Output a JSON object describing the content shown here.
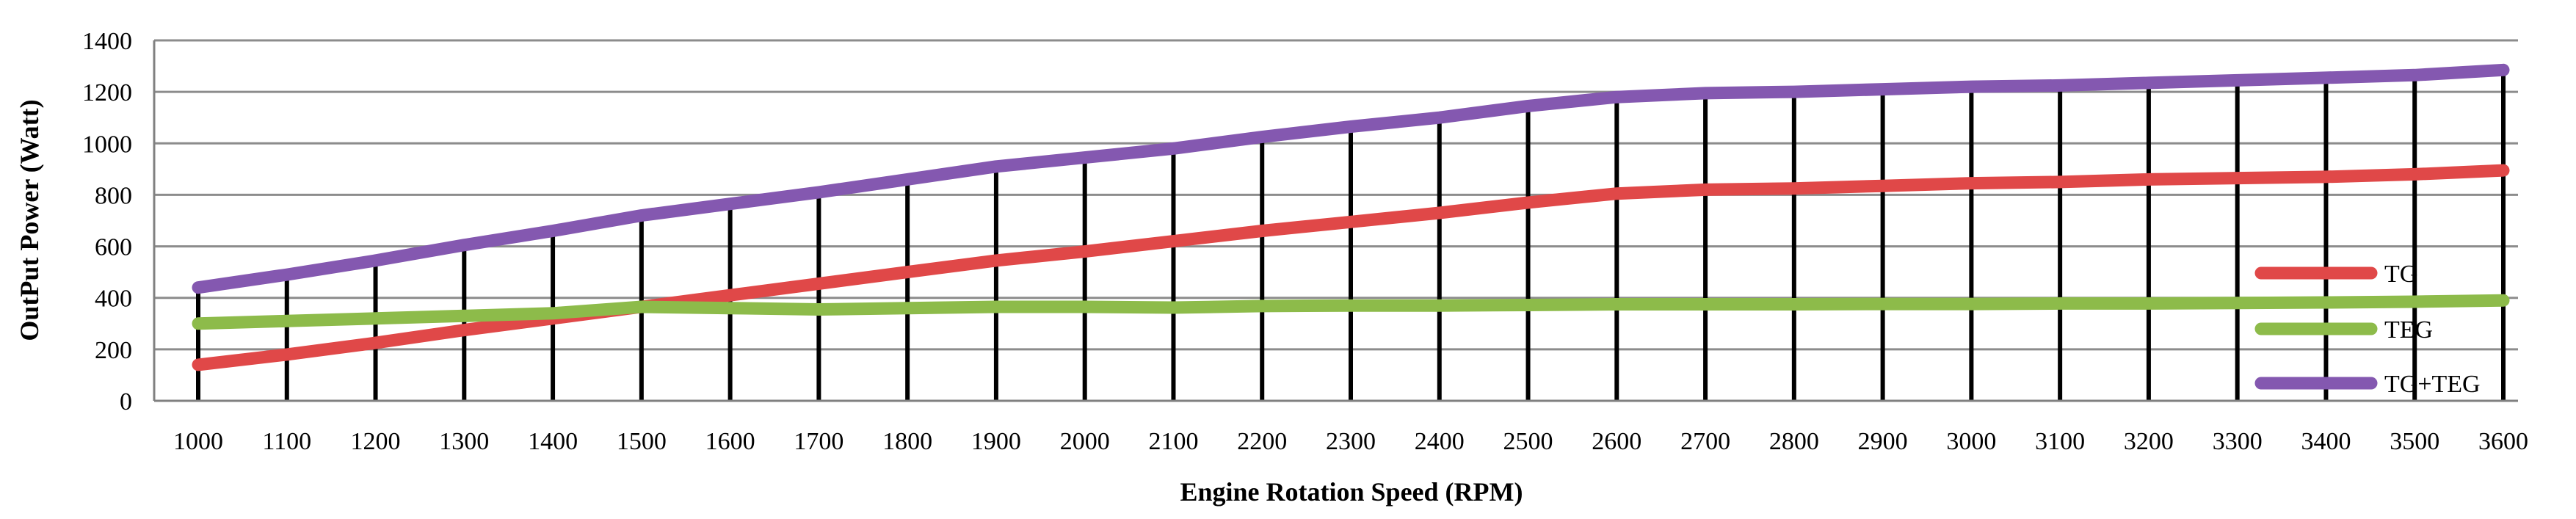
{
  "chart_data": {
    "type": "line",
    "title": "",
    "xlabel": "Engine Rotation Speed (RPM)",
    "ylabel": "OutPut Power (Watt)",
    "ylim": [
      0,
      1400
    ],
    "y_ticks": [
      0,
      200,
      400,
      600,
      800,
      1000,
      1200,
      1400
    ],
    "grid": "horizontal",
    "drop_lines": true,
    "legend_position": "right",
    "categories": [
      "1000",
      "1100",
      "1200",
      "1300",
      "1400",
      "1500",
      "1600",
      "1700",
      "1800",
      "1900",
      "2000",
      "2100",
      "2200",
      "2300",
      "2400",
      "2500",
      "2600",
      "2700",
      "2800",
      "2900",
      "3000",
      "3100",
      "3200",
      "3300",
      "3400",
      "3500",
      "3600"
    ],
    "series": [
      {
        "name": "TG",
        "color": "#e04848",
        "values": [
          140,
          180,
          225,
          275,
          320,
          365,
          410,
          455,
          500,
          545,
          580,
          620,
          660,
          695,
          730,
          770,
          805,
          820,
          825,
          835,
          845,
          850,
          860,
          865,
          870,
          880,
          895
        ]
      },
      {
        "name": "TEG",
        "color": "#8dbb4a",
        "values": [
          300,
          310,
          320,
          330,
          340,
          365,
          360,
          355,
          360,
          365,
          365,
          362,
          368,
          370,
          370,
          372,
          375,
          375,
          375,
          376,
          376,
          378,
          378,
          380,
          382,
          385,
          390
        ]
      },
      {
        "name": "TG+TEG",
        "color": "#8458b0",
        "values": [
          440,
          490,
          545,
          605,
          660,
          720,
          765,
          810,
          860,
          910,
          945,
          980,
          1025,
          1065,
          1100,
          1145,
          1180,
          1195,
          1200,
          1210,
          1220,
          1225,
          1235,
          1245,
          1255,
          1265,
          1285
        ]
      }
    ]
  }
}
